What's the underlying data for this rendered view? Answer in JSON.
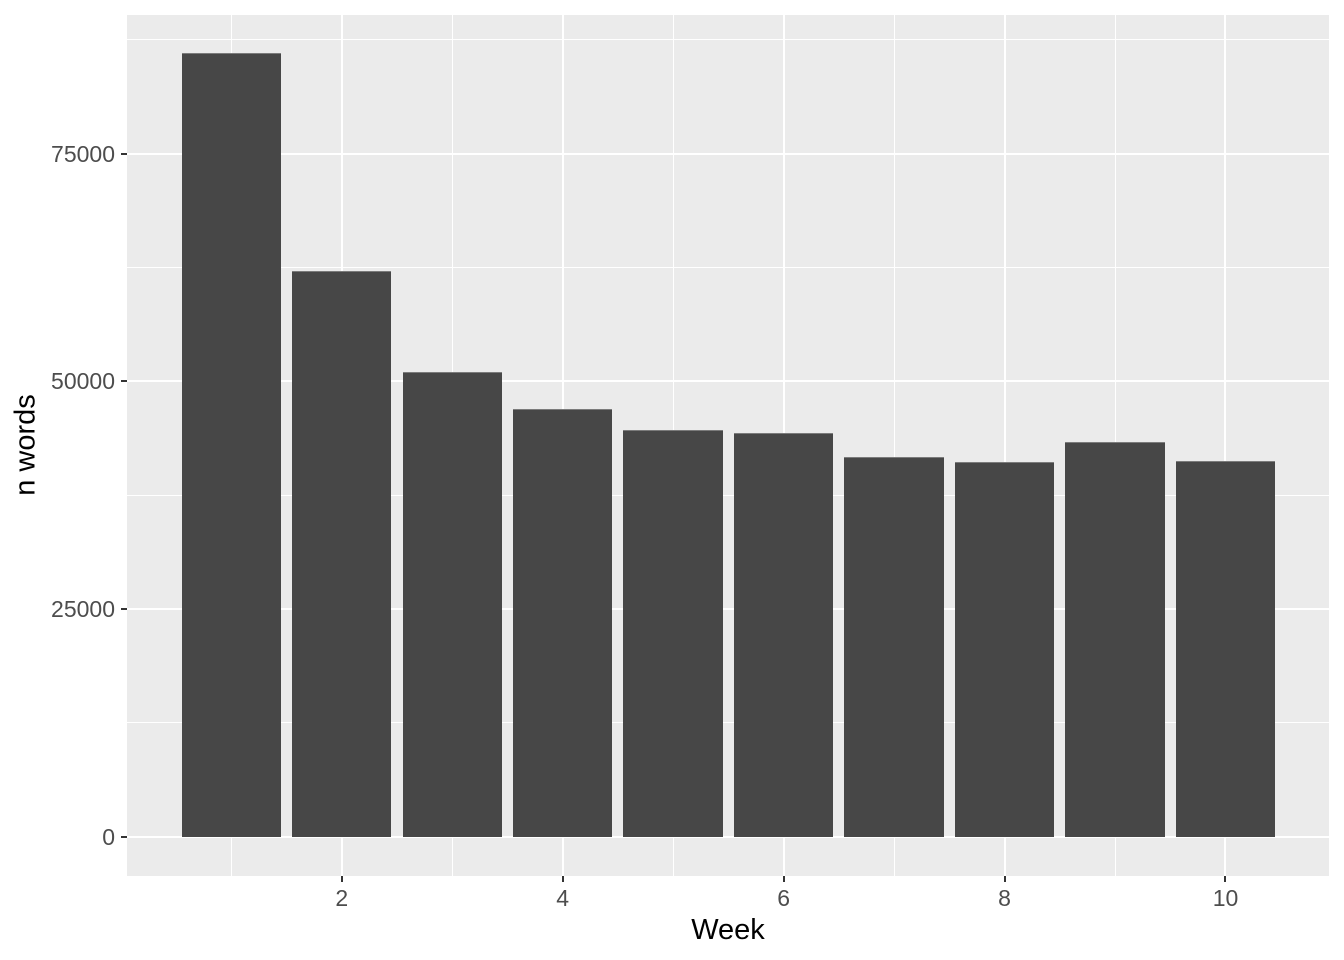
{
  "chart_data": {
    "type": "bar",
    "title": "",
    "xlabel": "Week",
    "ylabel": "n words",
    "x": [
      1,
      2,
      3,
      4,
      5,
      6,
      7,
      8,
      9,
      10
    ],
    "values": [
      86000,
      62100,
      51000,
      46900,
      44700,
      44300,
      41700,
      41100,
      43300,
      41200
    ],
    "x_ticks": [
      2,
      4,
      6,
      8,
      10
    ],
    "x_tick_labels": [
      "2",
      "4",
      "6",
      "8",
      "10"
    ],
    "y_ticks": [
      0,
      25000,
      50000,
      75000
    ],
    "y_tick_labels": [
      "0",
      "25000",
      "50000",
      "75000"
    ],
    "x_minor_breaks": [
      1,
      3,
      5,
      7,
      9
    ],
    "y_minor_breaks": [
      12500,
      37500,
      62500,
      87500
    ],
    "xlim": [
      0.056,
      10.937
    ],
    "ylim": [
      -4315,
      90210
    ],
    "bar_width_units": 0.9,
    "grid": true,
    "legend": "none",
    "style": {
      "bar_fill": "#474747",
      "panel_bg": "#EBEBEB",
      "grid_color": "#FFFFFF",
      "tick_label_color": "#4D4D4D",
      "axis_title_color": "#000000",
      "tick_mark_color": "#333333",
      "figure_bg": "#FFFFFF"
    }
  }
}
